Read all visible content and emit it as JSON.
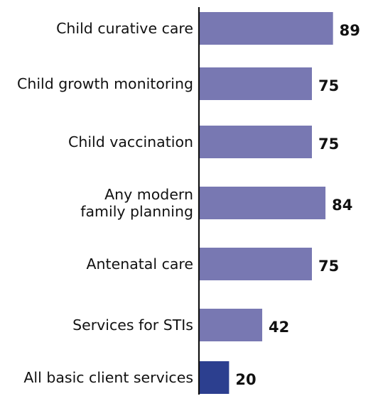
{
  "chart_data": {
    "type": "bar",
    "orientation": "horizontal",
    "categories": [
      "Child curative care",
      "Child growth monitoring",
      "Child vaccination",
      "Any modern family planning",
      "Antenatal care",
      "Services for STIs",
      "All basic client services"
    ],
    "category_lines": [
      [
        "Child curative care"
      ],
      [
        "Child growth monitoring"
      ],
      [
        "Child vaccination"
      ],
      [
        "Any modern",
        "family planning"
      ],
      [
        "Antenatal care"
      ],
      [
        "Services for STIs"
      ],
      [
        "All basic client services"
      ]
    ],
    "values": [
      89,
      75,
      75,
      84,
      75,
      42,
      20
    ],
    "value_labels": [
      "89",
      "75",
      "75",
      "84",
      "75",
      "42",
      "20"
    ],
    "bar_colors": [
      "#7878b2",
      "#7878b2",
      "#7878b2",
      "#7878b2",
      "#7878b2",
      "#7878b2",
      "#2c3f8f"
    ],
    "axis_color": "#111111",
    "xlim": [
      0,
      100
    ],
    "grid": false,
    "legend": "none",
    "title": "",
    "xlabel": "",
    "ylabel": ""
  }
}
